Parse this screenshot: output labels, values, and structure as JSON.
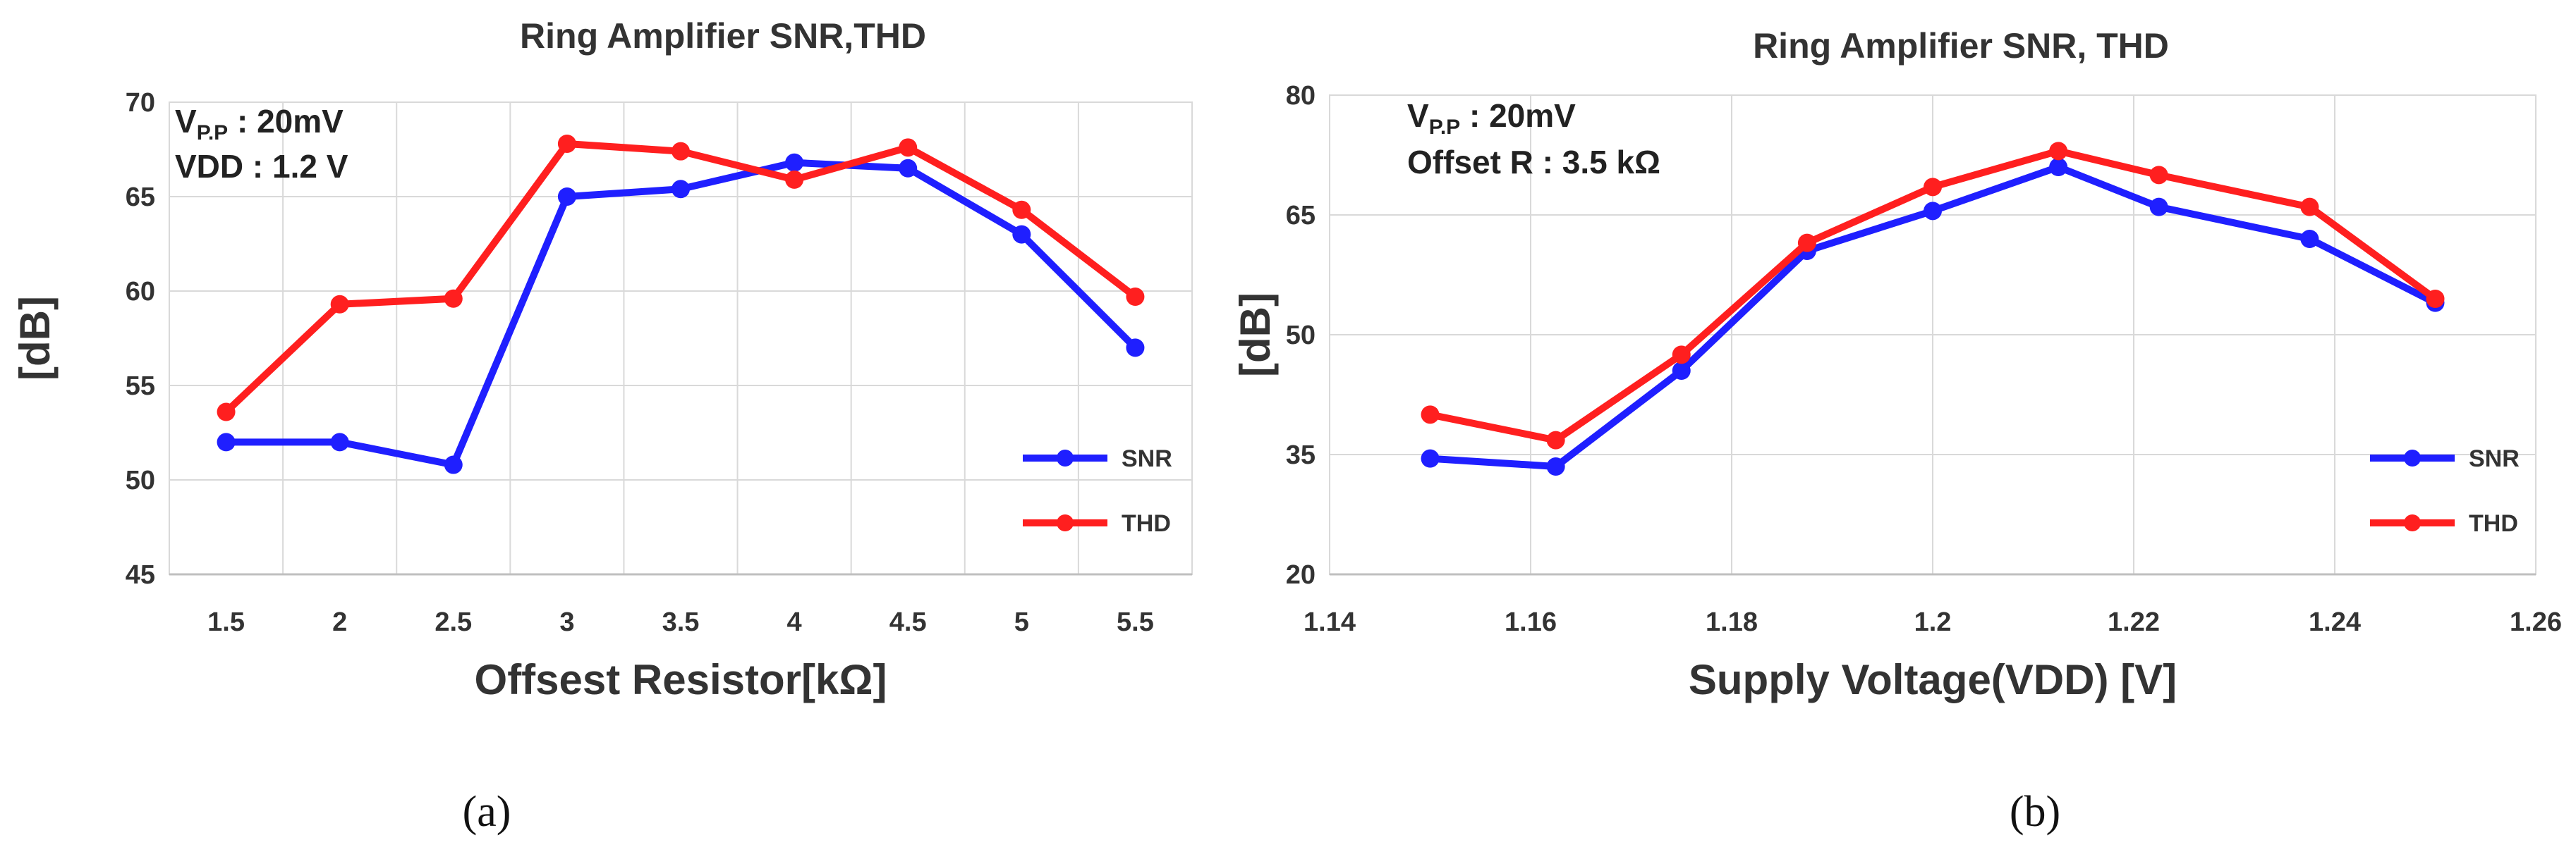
{
  "chart_data": [
    {
      "type": "line",
      "title": "Ring Amplifier SNR,THD",
      "xlabel": "Offsest Resistor[kΩ]",
      "ylabel": "[dB]",
      "panel_label": "(a)",
      "annotation": {
        "line1_main": "V",
        "line1_sub": "P.P",
        "line1_rest": " : 20mV",
        "line2": "VDD : 1.2 V"
      },
      "x_categories": [
        "1.5",
        "2",
        "2.5",
        "3",
        "3.5",
        "4",
        "4.5",
        "5",
        "5.5"
      ],
      "ylim": [
        45,
        70
      ],
      "yticks": [
        45,
        50,
        55,
        60,
        65,
        70
      ],
      "grid": true,
      "legend": "right",
      "series": [
        {
          "name": "SNR",
          "color": "#1f1fff",
          "values": [
            52.0,
            52.0,
            50.8,
            65.0,
            65.4,
            66.8,
            66.5,
            63.0,
            57.0
          ]
        },
        {
          "name": "THD",
          "color": "#ff1f1f",
          "values": [
            53.6,
            59.3,
            59.6,
            67.8,
            67.4,
            65.9,
            67.6,
            64.3,
            59.7
          ]
        }
      ]
    },
    {
      "type": "line",
      "title": "Ring Amplifier SNR, THD",
      "xlabel": "Supply Voltage(VDD) [V]",
      "ylabel": "[dB]",
      "panel_label": "(b)",
      "annotation": {
        "line1_main": "V",
        "line1_sub": "P.P",
        "line1_rest": " : 20mV",
        "line2": "Offset R : 3.5 kΩ"
      },
      "xlim": [
        1.14,
        1.26
      ],
      "xticks": [
        "1.14",
        "1.16",
        "1.18",
        "1.2",
        "1.22",
        "1.24",
        "1.26"
      ],
      "ylim": [
        20,
        80
      ],
      "yticks": [
        20,
        35,
        50,
        65,
        80
      ],
      "grid": true,
      "legend": "right",
      "series": [
        {
          "name": "SNR",
          "color": "#1f1fff",
          "x": [
            1.15,
            1.1625,
            1.175,
            1.1875,
            1.2,
            1.2125,
            1.2225,
            1.2375,
            1.25
          ],
          "values": [
            34.5,
            33.5,
            45.5,
            60.5,
            65.5,
            71.0,
            66.0,
            62.0,
            54.0
          ]
        },
        {
          "name": "THD",
          "color": "#ff1f1f",
          "x": [
            1.15,
            1.1625,
            1.175,
            1.1875,
            1.2,
            1.2125,
            1.2225,
            1.2375,
            1.25
          ],
          "values": [
            40.0,
            36.8,
            47.5,
            61.5,
            68.5,
            73.0,
            70.0,
            66.0,
            54.5
          ]
        }
      ]
    }
  ]
}
